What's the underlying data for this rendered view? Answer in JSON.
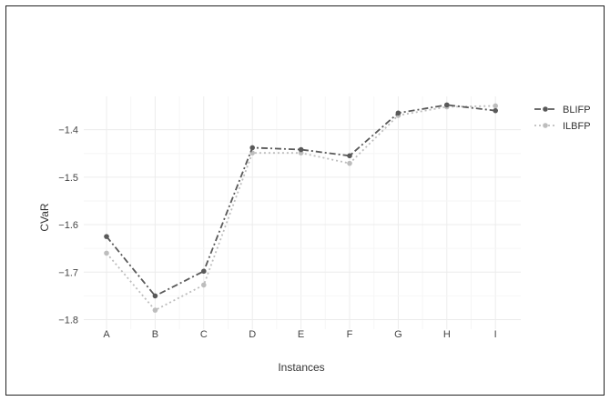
{
  "chart_data": {
    "type": "line",
    "title": "",
    "xlabel": "Instances",
    "ylabel": "CVaR",
    "categories": [
      "A",
      "B",
      "C",
      "D",
      "E",
      "F",
      "G",
      "H",
      "I"
    ],
    "ylim": [
      -1.82,
      -1.33
    ],
    "yticks": [
      -1.8,
      -1.7,
      -1.6,
      -1.5,
      -1.4
    ],
    "ytick_labels": [
      "−1.8",
      "−1.7",
      "−1.6",
      "−1.5",
      "−1.4"
    ],
    "grid": true,
    "legend_position": "right",
    "series": [
      {
        "name": "BLIFP",
        "color": "#595959",
        "dash": "dashdot",
        "values": [
          -1.625,
          -1.75,
          -1.698,
          -1.438,
          -1.442,
          -1.455,
          -1.365,
          -1.348,
          -1.36
        ]
      },
      {
        "name": "ILBFP",
        "color": "#bdbdbd",
        "dash": "dot",
        "values": [
          -1.66,
          -1.78,
          -1.727,
          -1.449,
          -1.449,
          -1.471,
          -1.37,
          -1.352,
          -1.35
        ]
      }
    ]
  }
}
